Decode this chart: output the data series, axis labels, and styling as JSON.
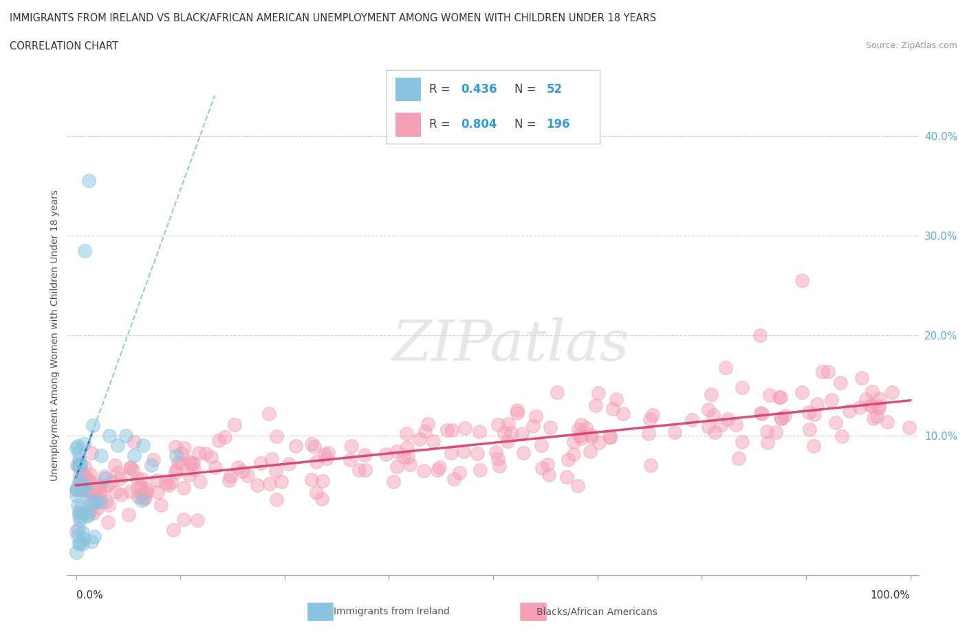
{
  "title_line1": "IMMIGRANTS FROM IRELAND VS BLACK/AFRICAN AMERICAN UNEMPLOYMENT AMONG WOMEN WITH CHILDREN UNDER 18 YEARS",
  "title_line2": "CORRELATION CHART",
  "source": "Source: ZipAtlas.com",
  "ylabel": "Unemployment Among Women with Children Under 18 years",
  "color_blue": "#89c4e1",
  "color_pink": "#f4a0b5",
  "color_blue_dark": "#2166ac",
  "color_pink_dark": "#d63b6e",
  "watermark": "ZIPatlas",
  "legend_label1": "Immigrants from Ireland",
  "legend_label2": "Blacks/African Americans"
}
